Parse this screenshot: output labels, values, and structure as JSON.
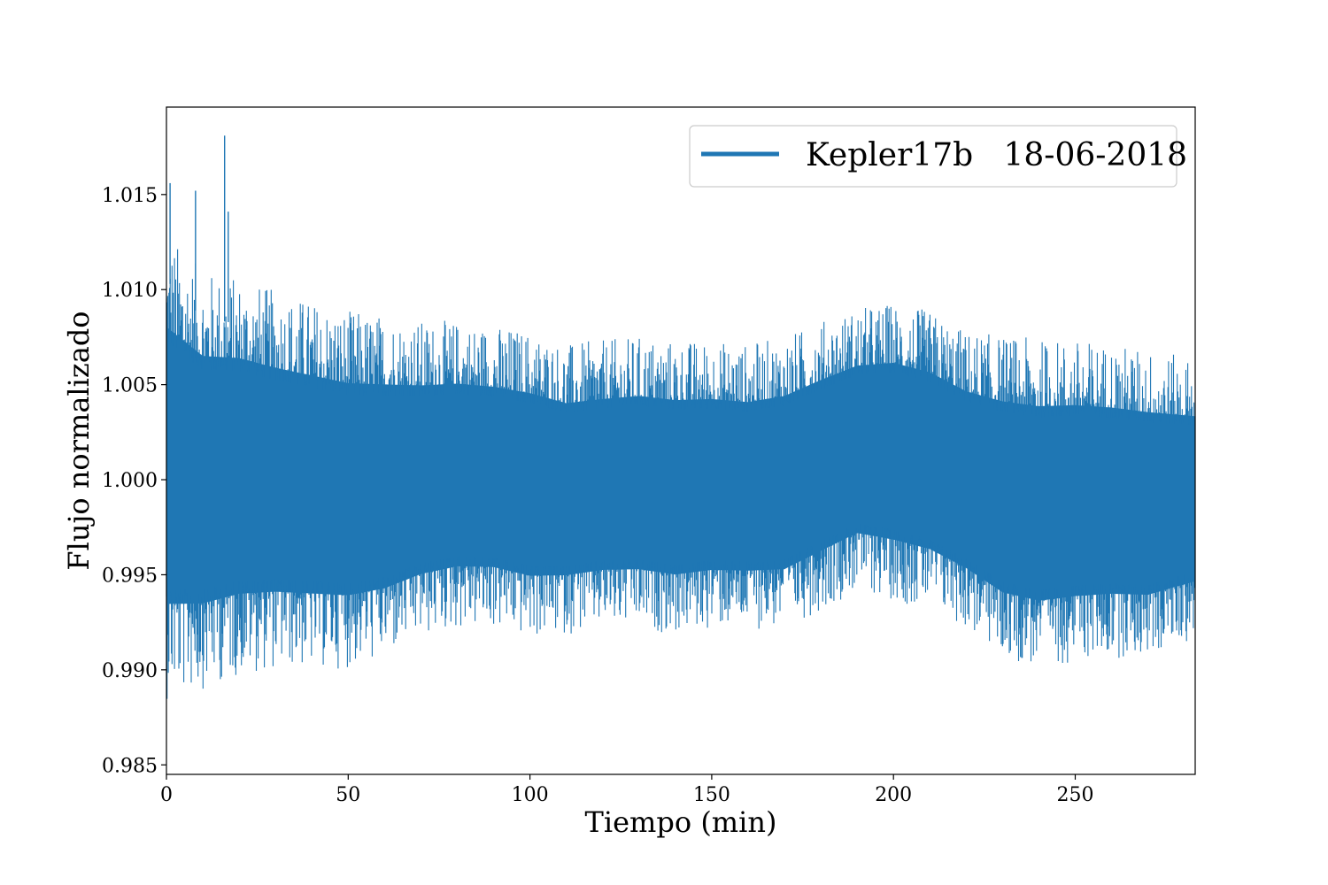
{
  "chart_data": {
    "type": "line",
    "title": "",
    "xlabel": "Tiempo (min)",
    "ylabel": "Flujo normalizado",
    "xlim": [
      0,
      283
    ],
    "ylim": [
      0.9845,
      1.0196
    ],
    "xticks": [
      0,
      50,
      100,
      150,
      200,
      250
    ],
    "xtick_labels": [
      "0",
      "50",
      "100",
      "150",
      "200",
      "250"
    ],
    "yticks": [
      0.985,
      0.99,
      0.995,
      1.0,
      1.005,
      1.01,
      1.015
    ],
    "ytick_labels": [
      "0.985",
      "0.990",
      "0.995",
      "1.000",
      "1.005",
      "1.010",
      "1.015"
    ],
    "grid": false,
    "legend_position": "top-right",
    "series": [
      {
        "name": "Kepler17b   18-06-2018",
        "color": "#1f77b4",
        "envelope_x": [
          0,
          10,
          20,
          30,
          40,
          50,
          60,
          70,
          80,
          90,
          100,
          110,
          120,
          130,
          140,
          150,
          160,
          170,
          180,
          190,
          200,
          210,
          220,
          230,
          240,
          250,
          260,
          270,
          283
        ],
        "envelope_upper": [
          1.0125,
          1.0105,
          1.0102,
          1.0095,
          1.009,
          1.0085,
          1.0083,
          1.008,
          1.008,
          1.0078,
          1.0075,
          1.0068,
          1.007,
          1.0072,
          1.007,
          1.007,
          1.0068,
          1.0072,
          1.008,
          1.0087,
          1.009,
          1.0085,
          1.0075,
          1.0072,
          1.007,
          1.007,
          1.0068,
          1.0065,
          1.006
        ],
        "envelope_lower": [
          0.989,
          0.9895,
          0.9902,
          0.9905,
          0.9905,
          0.9905,
          0.991,
          0.992,
          0.9925,
          0.9925,
          0.992,
          0.9922,
          0.9925,
          0.9925,
          0.9922,
          0.9925,
          0.9925,
          0.9925,
          0.9935,
          0.9945,
          0.994,
          0.9935,
          0.9925,
          0.991,
          0.9905,
          0.9908,
          0.991,
          0.991,
          0.992
        ],
        "spike_x": [
          16,
          1,
          8,
          17
        ],
        "spike_y": [
          1.0181,
          1.0156,
          1.0152,
          1.0141
        ]
      }
    ]
  }
}
